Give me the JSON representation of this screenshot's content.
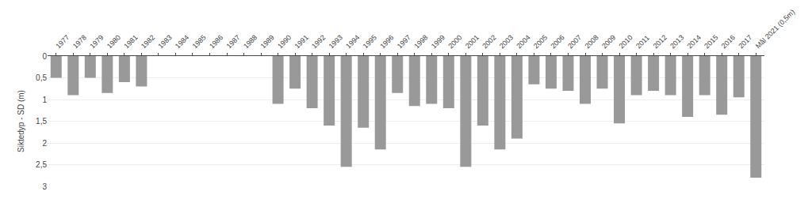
{
  "chart_data": {
    "type": "bar",
    "ylabel": "Siktedyp - SD (m)",
    "categories": [
      "1977",
      "1978",
      "1979",
      "1980",
      "1981",
      "1982",
      "1983",
      "1984",
      "1985",
      "1986",
      "1987",
      "1988",
      "1989",
      "1990",
      "1991",
      "1992",
      "1993",
      "1994",
      "1995",
      "1996",
      "1997",
      "1998",
      "1999",
      "2000",
      "2001",
      "2002",
      "2003",
      "2004",
      "2005",
      "2006",
      "2007",
      "2008",
      "2009",
      "2010",
      "2011",
      "2012",
      "2013",
      "2014",
      "2015",
      "2016",
      "2017",
      "Mål 2021 (0,5m)"
    ],
    "values": [
      0.5,
      0.9,
      0.5,
      0.85,
      0.6,
      0.7,
      null,
      null,
      null,
      null,
      null,
      null,
      null,
      1.1,
      0.75,
      1.2,
      1.6,
      2.55,
      1.65,
      2.15,
      0.85,
      1.15,
      1.1,
      1.2,
      2.55,
      1.6,
      2.15,
      1.9,
      0.65,
      0.75,
      0.8,
      1.1,
      0.75,
      1.55,
      0.9,
      0.8,
      0.9,
      1.4,
      0.9,
      1.35,
      0.95,
      2.8
    ],
    "color": "#999999",
    "ylim": [
      3,
      0
    ],
    "yticks": [
      0,
      {
        "value": 0.5,
        "label": "0,5"
      },
      1,
      {
        "value": 1.5,
        "label": "1,5"
      },
      2,
      {
        "value": 2.5,
        "label": "2,5"
      },
      3
    ],
    "grid": true
  }
}
